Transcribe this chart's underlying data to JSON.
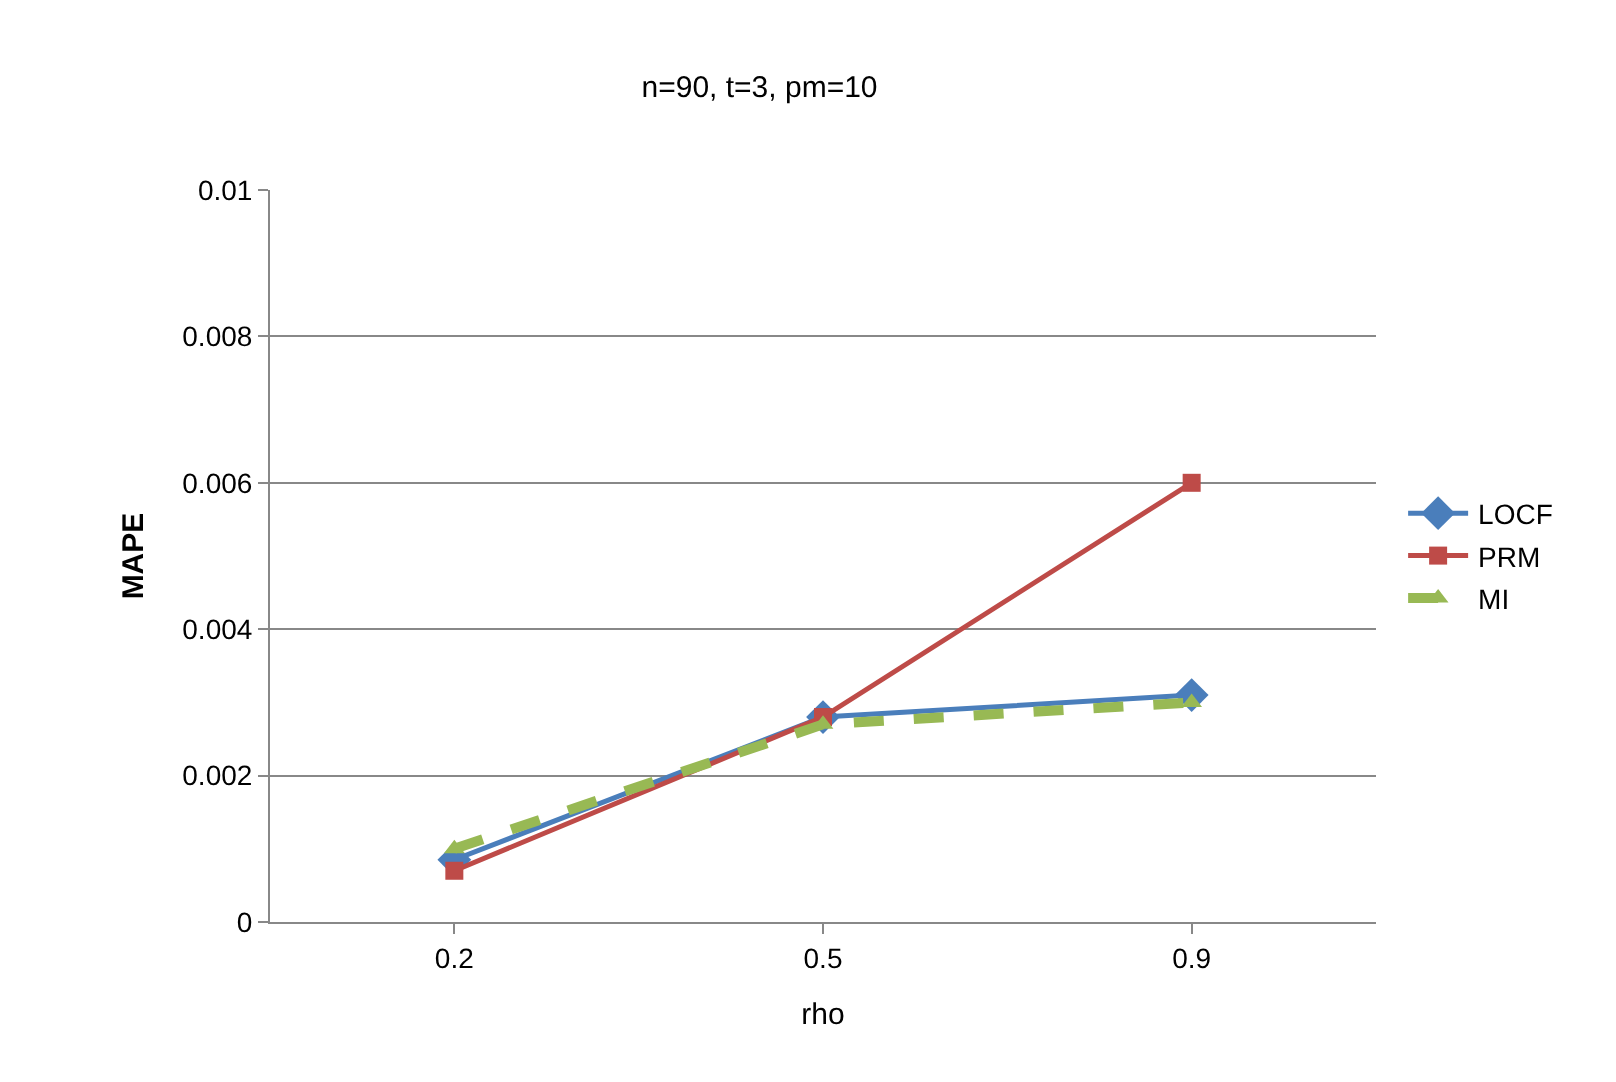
{
  "chart_data": {
    "type": "line",
    "title": "n=90, t=3, pm=10",
    "xlabel": "rho",
    "ylabel": "MAPE",
    "categories": [
      "0.2",
      "0.5",
      "0.9"
    ],
    "series": [
      {
        "name": "LOCF",
        "color": "#4a7ebb",
        "values": [
          0.00085,
          0.0028,
          0.0031
        ],
        "marker": "diamond",
        "line_style": "solid"
      },
      {
        "name": "PRM",
        "color": "#be4b48",
        "values": [
          0.0007,
          0.0028,
          0.006
        ],
        "marker": "square",
        "line_style": "solid"
      },
      {
        "name": "MI",
        "color": "#98b954",
        "values": [
          0.001,
          0.0027,
          0.003
        ],
        "marker": "triangle",
        "line_style": "dashed"
      }
    ],
    "ylim": [
      0,
      0.01
    ],
    "yticks": [
      0,
      0.002,
      0.004,
      0.006,
      0.008,
      0.01
    ],
    "grid": "y",
    "legend": "right"
  }
}
